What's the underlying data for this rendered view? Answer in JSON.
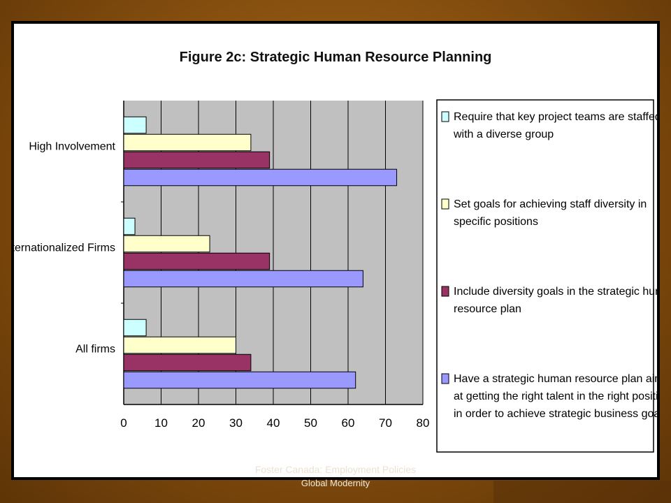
{
  "slide": {
    "footer_line1": "Foster Canada: Employment Policies",
    "footer_line2": "Global Modernity"
  },
  "chart_data": {
    "type": "bar",
    "orientation": "horizontal",
    "title": "Figure 2c: Strategic Human Resource Planning",
    "categories": [
      "High Involvement",
      "Internationalized Firms",
      "All firms"
    ],
    "series": [
      {
        "name": "Require that key project teams are staffed with a diverse group",
        "color": "#ccffff",
        "values": [
          6,
          3,
          6
        ]
      },
      {
        "name": "Set goals for achieving staff diversity in specific positions",
        "color": "#ffffcc",
        "values": [
          34,
          23,
          30
        ]
      },
      {
        "name": "Include diversity goals in the strategic human resource plan",
        "color": "#993366",
        "values": [
          39,
          39,
          34
        ]
      },
      {
        "name": "Have a strategic human resource plan aimed at getting the right talent in the right positions in order to achieve strategic business goals",
        "color": "#9999ff",
        "values": [
          73,
          64,
          62
        ]
      }
    ],
    "xlim": [
      0,
      80
    ],
    "xticks": [
      0,
      10,
      20,
      30,
      40,
      50,
      60,
      70,
      80
    ],
    "xlabel": "",
    "ylabel": "",
    "grid": true,
    "plot_background": "#c0c0c0",
    "legend_position": "right",
    "legend_lines": [
      [
        "Require that key project teams are staffed",
        "with a diverse group"
      ],
      [
        "Set goals for achieving staff diversity in",
        "specific positions"
      ],
      [
        "Include diversity goals in the strategic human",
        "resource plan"
      ],
      [
        "Have a strategic human resource plan aimed",
        "at getting the right talent in the right positions",
        "in order to achieve strategic business goals"
      ]
    ]
  }
}
